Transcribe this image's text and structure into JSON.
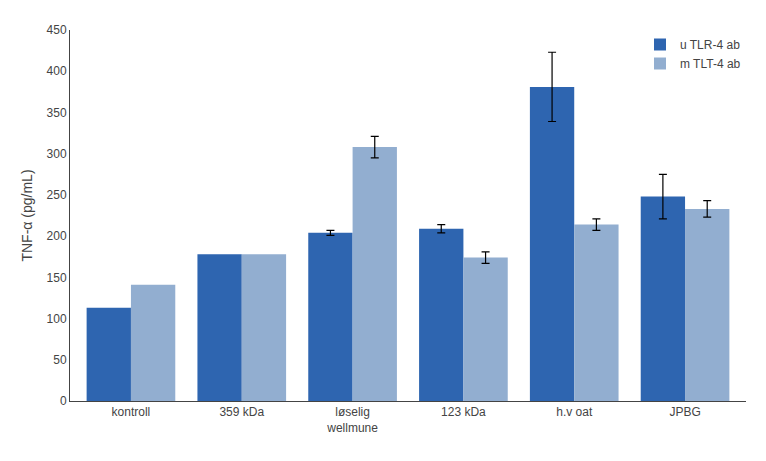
{
  "chart_data": {
    "type": "bar",
    "categories": [
      "kontroll",
      "359 kDa",
      "løselig\nwellmune",
      "123 kDa",
      "h.v oat",
      "JPBG"
    ],
    "series": [
      {
        "name": "u TLR-4 ab",
        "color": "#2E65B0",
        "values": [
          113,
          178,
          204,
          209,
          381,
          248
        ],
        "errors": [
          0,
          0,
          3,
          5,
          42,
          27
        ]
      },
      {
        "name": "m TLT-4 ab",
        "color": "#92AED0",
        "values": [
          141,
          178,
          308,
          174,
          214,
          233
        ],
        "errors": [
          0,
          0,
          13,
          7,
          7,
          10
        ]
      }
    ],
    "ylabel": "TNF-α (pg/mL)",
    "ylim": [
      0,
      450
    ],
    "yticks": [
      0,
      50,
      100,
      150,
      200,
      250,
      300,
      350,
      400,
      450
    ],
    "grid": false,
    "legend": "upper right"
  }
}
